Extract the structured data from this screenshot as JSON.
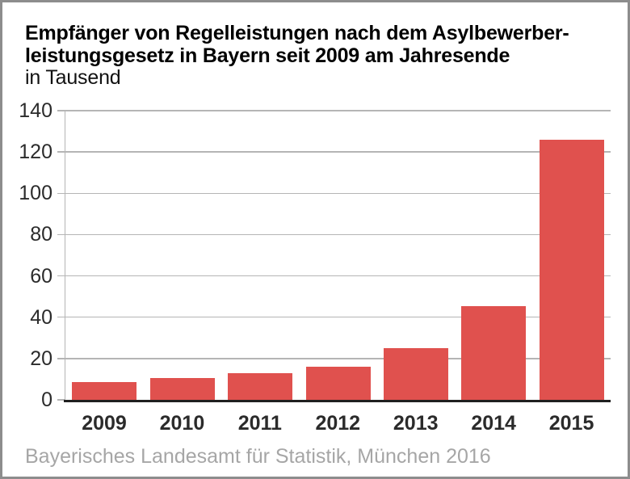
{
  "header": {
    "title_line1": "Empfänger von Regelleistungen nach dem Asylbewerber-",
    "title_line2": "leistungsgesetz in Bayern seit 2009 am Jahresende",
    "subtitle": "in Tausend"
  },
  "footer": {
    "source": "Bayerisches Landesamt für Statistik, München 2016"
  },
  "colors": {
    "bar": "#e0514e",
    "grid": "#b5b5b5",
    "baseline": "#1f1f1f",
    "border": "#8d8d8d",
    "footer_text": "#a6a6a6"
  },
  "chart_data": {
    "type": "bar",
    "title": "Empfänger von Regelleistungen nach dem Asylbewerberleistungsgesetz in Bayern seit 2009 am Jahresende",
    "subtitle": "in Tausend",
    "categories": [
      "2009",
      "2010",
      "2011",
      "2012",
      "2013",
      "2014",
      "2015"
    ],
    "values": [
      8.6,
      10.5,
      12.9,
      15.9,
      25.1,
      45.2,
      125.9
    ],
    "xlabel": "",
    "ylabel": "in Tausend",
    "ylim": [
      0,
      140
    ],
    "yticks": [
      0,
      20,
      40,
      60,
      80,
      100,
      120,
      140
    ],
    "grid": true,
    "legend": false,
    "source": "Bayerisches Landesamt für Statistik, München 2016"
  }
}
